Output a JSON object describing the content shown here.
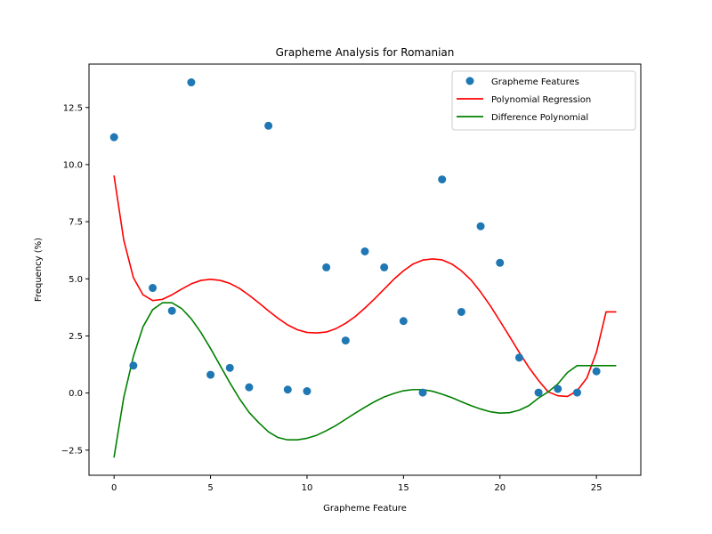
{
  "chart_data": {
    "type": "scatter",
    "title": "Grapheme Analysis for Romanian",
    "xlabel": "Grapheme Feature",
    "ylabel": "Frequency (%)",
    "xlim": [
      -1.3,
      27.3
    ],
    "ylim": [
      -3.6,
      14.4
    ],
    "xticks": [
      0,
      5,
      10,
      15,
      20,
      25
    ],
    "xtick_labels": [
      "0",
      "5",
      "10",
      "15",
      "20",
      "25"
    ],
    "yticks": [
      -2.5,
      0.0,
      2.5,
      5.0,
      7.5,
      10.0,
      12.5
    ],
    "ytick_labels": [
      "−2.5",
      "0.0",
      "2.5",
      "5.0",
      "7.5",
      "10.0",
      "12.5"
    ],
    "grid": false,
    "legend_position": "top-right",
    "series": [
      {
        "name": "Grapheme Features",
        "kind": "scatter",
        "color": "#1f77b4",
        "x": [
          0,
          1,
          2,
          3,
          4,
          5,
          6,
          7,
          8,
          9,
          10,
          11,
          12,
          13,
          14,
          15,
          16,
          17,
          18,
          19,
          20,
          21,
          22,
          23,
          24,
          25
        ],
        "y": [
          11.2,
          1.2,
          4.6,
          3.6,
          13.6,
          0.8,
          1.1,
          0.25,
          11.7,
          0.15,
          0.08,
          5.5,
          2.3,
          6.2,
          5.5,
          3.15,
          0.02,
          9.35,
          3.55,
          7.3,
          5.7,
          1.55,
          0.02,
          0.18,
          0.02,
          0.95
        ]
      },
      {
        "name": "Polynomial Regression",
        "kind": "line",
        "color": "#ff0000",
        "x": [
          0,
          0.5,
          1,
          1.5,
          2,
          2.5,
          3,
          3.5,
          4,
          4.5,
          5,
          5.5,
          6,
          6.5,
          7,
          7.5,
          8,
          8.5,
          9,
          9.5,
          10,
          10.5,
          11,
          11.5,
          12,
          12.5,
          13,
          13.5,
          14,
          14.5,
          15,
          15.5,
          16,
          16.5,
          17,
          17.5,
          18,
          18.5,
          19,
          19.5,
          20,
          20.5,
          21,
          21.5,
          22,
          22.5,
          23,
          23.5,
          24,
          24.5,
          25,
          25.5,
          26
        ],
        "y": [
          9.5,
          6.7,
          5.05,
          4.3,
          4.05,
          4.1,
          4.3,
          4.55,
          4.78,
          4.93,
          4.98,
          4.93,
          4.8,
          4.58,
          4.28,
          3.95,
          3.6,
          3.27,
          2.98,
          2.77,
          2.65,
          2.63,
          2.67,
          2.82,
          3.05,
          3.35,
          3.72,
          4.12,
          4.55,
          4.98,
          5.35,
          5.65,
          5.82,
          5.87,
          5.83,
          5.65,
          5.35,
          4.95,
          4.42,
          3.82,
          3.15,
          2.47,
          1.78,
          1.12,
          0.55,
          0.05,
          -0.12,
          -0.15,
          0.1,
          0.65,
          1.78,
          3.55,
          3.55
        ]
      },
      {
        "name": "Difference Polynomial",
        "kind": "line",
        "color": "#008000",
        "x": [
          0,
          0.5,
          1,
          1.5,
          2,
          2.5,
          3,
          3.5,
          4,
          4.5,
          5,
          5.5,
          6,
          6.5,
          7,
          7.5,
          8,
          8.5,
          9,
          9.5,
          10,
          10.5,
          11,
          11.5,
          12,
          12.5,
          13,
          13.5,
          14,
          14.5,
          15,
          15.5,
          16,
          16.5,
          17,
          17.5,
          18,
          18.5,
          19,
          19.5,
          20,
          20.5,
          21,
          21.5,
          22,
          22.5,
          23,
          23.5,
          24,
          24.5,
          25,
          25.5,
          26
        ],
        "y": [
          -2.8,
          -0.2,
          1.6,
          2.9,
          3.65,
          3.95,
          3.95,
          3.7,
          3.25,
          2.65,
          1.95,
          1.2,
          0.45,
          -0.25,
          -0.85,
          -1.3,
          -1.7,
          -1.95,
          -2.05,
          -2.05,
          -1.98,
          -1.85,
          -1.65,
          -1.42,
          -1.15,
          -0.88,
          -0.62,
          -0.38,
          -0.17,
          -0.02,
          0.1,
          0.15,
          0.15,
          0.08,
          -0.05,
          -0.2,
          -0.38,
          -0.55,
          -0.7,
          -0.82,
          -0.88,
          -0.86,
          -0.75,
          -0.55,
          -0.22,
          0.05,
          0.4,
          0.9,
          1.2,
          1.2,
          1.2,
          1.2,
          1.2
        ]
      }
    ]
  }
}
